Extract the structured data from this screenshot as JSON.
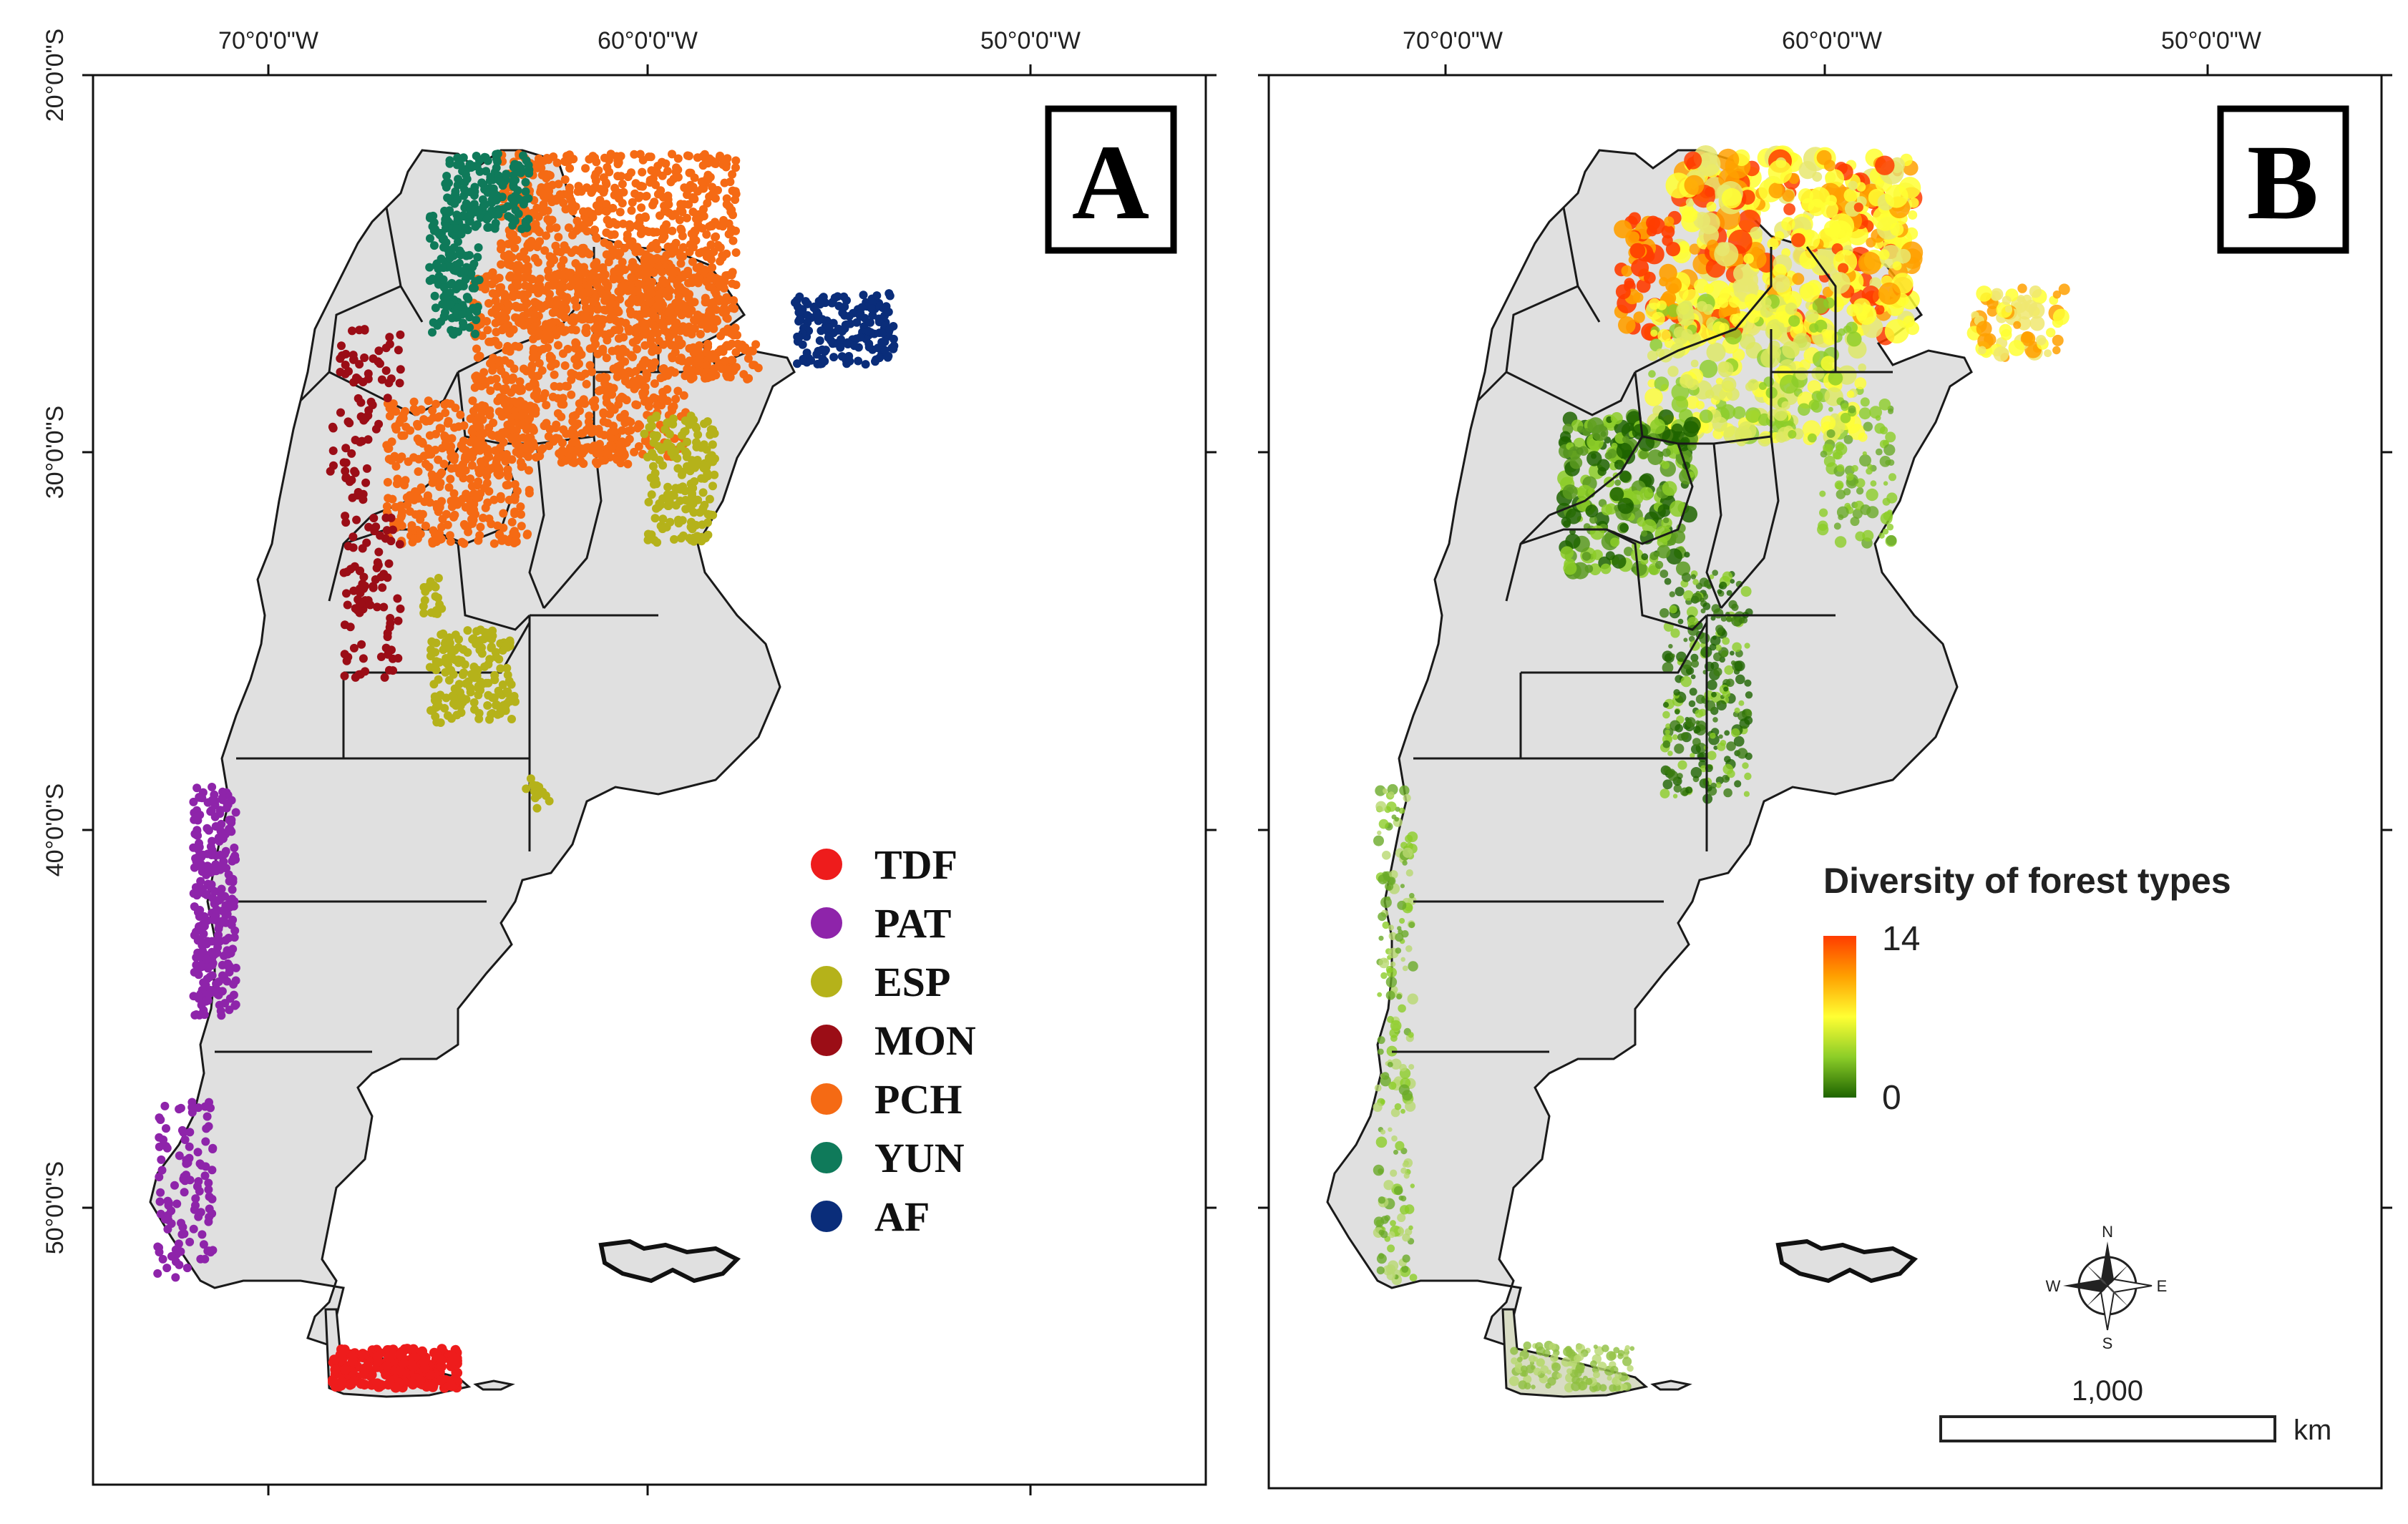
{
  "axes": {
    "longitude_labels": [
      "70°0'0\"W",
      "60°0'0\"W",
      "50°0'0\"W"
    ],
    "latitude_labels": [
      "20°0'0\"S",
      "30°0'0\"S",
      "40°0'0\"S",
      "50°0'0\"S"
    ]
  },
  "panel_a": {
    "letter": "A",
    "legend": [
      {
        "label": "TDF",
        "color": "#ee1c1c"
      },
      {
        "label": "PAT",
        "color": "#8e24aa"
      },
      {
        "label": "ESP",
        "color": "#b5b21a"
      },
      {
        "label": "MON",
        "color": "#9b0d16"
      },
      {
        "label": "PCH",
        "color": "#f56a14"
      },
      {
        "label": "YUN",
        "color": "#0f7a5a"
      },
      {
        "label": "AF",
        "color": "#0a2d7a"
      }
    ]
  },
  "panel_b": {
    "letter": "B",
    "legend_title": "Diversity of forest types",
    "scale_max": "14",
    "scale_min": "0",
    "ramp_colors": [
      "#ff3c00",
      "#ffa000",
      "#ffff33",
      "#8ccd28",
      "#1e6400"
    ],
    "compass": {
      "n": "N",
      "s": "S",
      "e": "E",
      "w": "W"
    },
    "scalebar_value": "1,000",
    "scalebar_unit": "km"
  },
  "colors": {
    "land": "#e0e0e0",
    "border": "#1a1a1a"
  }
}
